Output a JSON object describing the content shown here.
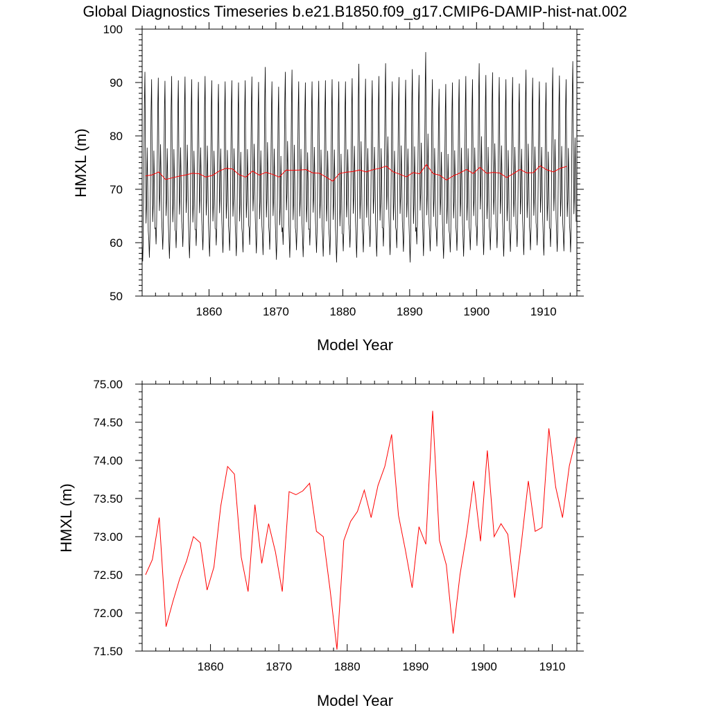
{
  "title": "Global Diagnostics Timeseries b.e21.B1850.f09_g17.CMIP6-DAMIP-hist-nat.002",
  "colors": {
    "monthly": "#000000",
    "annual": "#ff0000",
    "axes": "#000000",
    "background": "#ffffff"
  },
  "chart_data": [
    {
      "type": "line",
      "title": "Global Diagnostics Timeseries b.e21.B1850.f09_g17.CMIP6-DAMIP-hist-nat.002",
      "xlabel": "Model Year",
      "ylabel": "HMXL (m)",
      "xlim": [
        1850,
        1915
      ],
      "ylim": [
        50,
        100
      ],
      "xticks": [
        1860,
        1870,
        1880,
        1890,
        1900,
        1910
      ],
      "xtick_labels": [
        "1860",
        "1870",
        "1880",
        "1890",
        "1900",
        "1910"
      ],
      "yticks": [
        50,
        60,
        70,
        80,
        90,
        100
      ],
      "ytick_labels": [
        "50",
        "60",
        "70",
        "80",
        "90",
        "100"
      ],
      "grid": false,
      "legend": "none",
      "series": [
        {
          "color": "#000000",
          "style": "monthly seasonal cycle",
          "start": 1850.0,
          "step": 0.0833,
          "annual_peaks": [
            92.0,
            90.6,
            90.9,
            90.3,
            91.2,
            90.4,
            91.1,
            90.6,
            90.1,
            91.2,
            90.4,
            89.7,
            90.2,
            90.4,
            90.0,
            90.4,
            91.1,
            90.1,
            92.9,
            90.2,
            89.2,
            92.0,
            92.4,
            90.2,
            90.0,
            90.2,
            90.3,
            90.4,
            90.6,
            90.2,
            90.2,
            90.8,
            93.5,
            90.7,
            90.4,
            91.2,
            93.6,
            90.2,
            91.0,
            90.5,
            92.5,
            91.4,
            95.7,
            90.6,
            88.8,
            89.7,
            90.0,
            90.6,
            91.2,
            90.6,
            93.6,
            91.4,
            91.9,
            91.0,
            90.6,
            91.0,
            89.8,
            92.4,
            90.9,
            90.2,
            90.0,
            92.8,
            91.3,
            90.6,
            94.0
          ],
          "annual_minima": [
            56.5,
            57.2,
            59.7,
            58.7,
            57.0,
            59.0,
            59.2,
            57.1,
            59.4,
            58.6,
            57.4,
            59.5,
            58.1,
            58.5,
            57.5,
            58.2,
            59.6,
            58.0,
            57.7,
            58.7,
            56.8,
            59.6,
            57.2,
            58.6,
            57.3,
            59.5,
            58.1,
            57.4,
            57.7,
            56.3,
            58.4,
            59.1,
            57.2,
            58.2,
            59.2,
            57.4,
            59.3,
            57.7,
            59.0,
            58.3,
            56.3,
            59.7,
            57.5,
            58.4,
            59.3,
            57.0,
            58.2,
            58.5,
            57.4,
            58.6,
            59.4,
            57.7,
            58.6,
            59.0,
            57.4,
            58.3,
            59.2,
            57.7,
            58.6,
            59.5,
            57.6,
            59.2,
            58.3,
            58.4,
            58.2
          ]
        },
        {
          "color": "#ff0000",
          "x": [
            1850.5,
            1851.5,
            1852.5,
            1853.5,
            1854.5,
            1855.5,
            1856.5,
            1857.5,
            1858.5,
            1859.5,
            1860.5,
            1861.5,
            1862.5,
            1863.5,
            1864.5,
            1865.5,
            1866.5,
            1867.5,
            1868.5,
            1869.5,
            1870.5,
            1871.5,
            1872.5,
            1873.5,
            1874.5,
            1875.5,
            1876.5,
            1877.5,
            1878.5,
            1879.5,
            1880.5,
            1881.5,
            1882.5,
            1883.5,
            1884.5,
            1885.5,
            1886.5,
            1887.5,
            1888.5,
            1889.5,
            1890.5,
            1891.5,
            1892.5,
            1893.5,
            1894.5,
            1895.5,
            1896.5,
            1897.5,
            1898.5,
            1899.5,
            1900.5,
            1901.5,
            1902.5,
            1903.5,
            1904.5,
            1905.5,
            1906.5,
            1907.5,
            1908.5,
            1909.5,
            1910.5,
            1911.5,
            1912.5,
            1913.5
          ],
          "values": [
            72.5,
            72.7,
            73.25,
            71.82,
            72.15,
            72.45,
            72.68,
            73.0,
            72.92,
            72.3,
            72.6,
            73.4,
            73.92,
            73.82,
            72.73,
            72.28,
            73.42,
            72.65,
            73.17,
            72.8,
            72.28,
            73.59,
            73.55,
            73.6,
            73.7,
            73.07,
            73.0,
            72.3,
            71.52,
            72.95,
            73.2,
            73.33,
            73.61,
            73.25,
            73.67,
            73.92,
            74.34,
            73.28,
            72.83,
            72.33,
            73.13,
            72.9,
            74.65,
            72.95,
            72.63,
            71.73,
            72.5,
            73.05,
            73.73,
            72.94,
            74.13,
            73.0,
            73.17,
            73.03,
            72.2,
            72.93,
            73.73,
            73.07,
            73.12,
            74.42,
            73.65,
            73.25,
            73.93,
            74.3
          ]
        }
      ]
    },
    {
      "type": "line",
      "xlabel": "Model Year",
      "ylabel": "HMXL (m)",
      "xlim": [
        1850,
        1913.6
      ],
      "ylim": [
        71.5,
        75.0
      ],
      "xticks": [
        1860,
        1870,
        1880,
        1890,
        1900,
        1910
      ],
      "xtick_labels": [
        "1860",
        "1870",
        "1880",
        "1890",
        "1900",
        "1910"
      ],
      "yticks": [
        71.5,
        72.0,
        72.5,
        73.0,
        73.5,
        74.0,
        74.5,
        75.0
      ],
      "ytick_labels": [
        "71.50",
        "72.00",
        "72.50",
        "73.00",
        "73.50",
        "74.00",
        "74.50",
        "75.00"
      ],
      "grid": false,
      "legend": "none",
      "series": [
        {
          "color": "#ff0000",
          "x": [
            1850.5,
            1851.5,
            1852.5,
            1853.5,
            1854.5,
            1855.5,
            1856.5,
            1857.5,
            1858.5,
            1859.5,
            1860.5,
            1861.5,
            1862.5,
            1863.5,
            1864.5,
            1865.5,
            1866.5,
            1867.5,
            1868.5,
            1869.5,
            1870.5,
            1871.5,
            1872.5,
            1873.5,
            1874.5,
            1875.5,
            1876.5,
            1877.5,
            1878.5,
            1879.5,
            1880.5,
            1881.5,
            1882.5,
            1883.5,
            1884.5,
            1885.5,
            1886.5,
            1887.5,
            1888.5,
            1889.5,
            1890.5,
            1891.5,
            1892.5,
            1893.5,
            1894.5,
            1895.5,
            1896.5,
            1897.5,
            1898.5,
            1899.5,
            1900.5,
            1901.5,
            1902.5,
            1903.5,
            1904.5,
            1905.5,
            1906.5,
            1907.5,
            1908.5,
            1909.5,
            1910.5,
            1911.5,
            1912.5,
            1913.5
          ],
          "values": [
            72.5,
            72.7,
            73.25,
            71.82,
            72.15,
            72.45,
            72.68,
            73.0,
            72.92,
            72.3,
            72.6,
            73.4,
            73.92,
            73.82,
            72.73,
            72.28,
            73.42,
            72.65,
            73.17,
            72.8,
            72.28,
            73.59,
            73.55,
            73.6,
            73.7,
            73.07,
            73.0,
            72.3,
            71.52,
            72.95,
            73.2,
            73.33,
            73.61,
            73.25,
            73.67,
            73.92,
            74.34,
            73.28,
            72.83,
            72.33,
            73.13,
            72.9,
            74.65,
            72.95,
            72.63,
            71.73,
            72.5,
            73.05,
            73.73,
            72.94,
            74.13,
            73.0,
            73.17,
            73.03,
            72.2,
            72.93,
            73.73,
            73.07,
            73.12,
            74.42,
            73.65,
            73.25,
            73.93,
            74.3
          ]
        }
      ]
    }
  ]
}
